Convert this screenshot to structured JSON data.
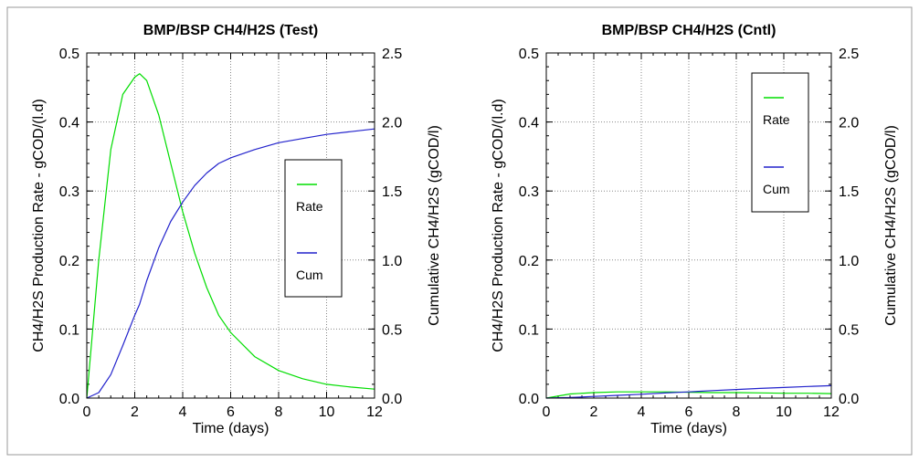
{
  "chart_data": [
    {
      "type": "line",
      "title": "BMP/BSP CH4/H2S (Test)",
      "xlabel": "Time (days)",
      "ylabel": "CH4/H2S Production Rate - gCOD/(l.d)",
      "y2label": "Cumulative CH4/H2S (gCOD/l)",
      "xlim": [
        0,
        12
      ],
      "ylim": [
        0,
        0.5
      ],
      "y2lim": [
        0,
        2.5
      ],
      "xticks": [
        "0",
        "2",
        "4",
        "6",
        "8",
        "10",
        "12"
      ],
      "yticks": [
        "0.0",
        "0.1",
        "0.2",
        "0.3",
        "0.4",
        "0.5"
      ],
      "y2ticks": [
        "0.0",
        "0.5",
        "1.0",
        "1.5",
        "2.0",
        "2.5"
      ],
      "grid": true,
      "legend_position": "center-right",
      "x": [
        0,
        0.5,
        1,
        1.5,
        2,
        2.2,
        2.5,
        3,
        3.5,
        4,
        4.5,
        5,
        5.5,
        6,
        7,
        8,
        9,
        10,
        11,
        12
      ],
      "series": [
        {
          "name": "Rate",
          "color": "#00dd00",
          "axis": "left",
          "values": [
            0,
            0.2,
            0.36,
            0.44,
            0.465,
            0.47,
            0.46,
            0.41,
            0.34,
            0.27,
            0.21,
            0.16,
            0.12,
            0.095,
            0.06,
            0.04,
            0.028,
            0.02,
            0.016,
            0.013
          ]
        },
        {
          "name": "Cum",
          "color": "#2222cc",
          "axis": "right",
          "values": [
            0,
            0.04,
            0.17,
            0.38,
            0.6,
            0.68,
            0.85,
            1.09,
            1.28,
            1.42,
            1.54,
            1.63,
            1.7,
            1.74,
            1.8,
            1.85,
            1.88,
            1.91,
            1.93,
            1.95
          ]
        }
      ]
    },
    {
      "type": "line",
      "title": "BMP/BSP CH4/H2S (Cntl)",
      "xlabel": "Time (days)",
      "ylabel": "CH4/H2S Production Rate - gCOD/(l.d)",
      "y2label": "Cumulative CH4/H2S (gCOD/l)",
      "xlim": [
        0,
        12
      ],
      "ylim": [
        0,
        0.5
      ],
      "y2lim": [
        0,
        2.5
      ],
      "xticks": [
        "0",
        "2",
        "4",
        "6",
        "8",
        "10",
        "12"
      ],
      "yticks": [
        "0.0",
        "0.1",
        "0.2",
        "0.3",
        "0.4",
        "0.5"
      ],
      "y2ticks": [
        "0.0",
        "0.5",
        "1.0",
        "1.5",
        "2.0",
        "2.5"
      ],
      "grid": true,
      "legend_position": "top-right",
      "x": [
        0,
        1,
        2,
        3,
        4,
        5,
        6,
        7,
        8,
        9,
        10,
        11,
        12
      ],
      "series": [
        {
          "name": "Rate",
          "color": "#00dd00",
          "axis": "left",
          "values": [
            0,
            0.006,
            0.008,
            0.009,
            0.009,
            0.009,
            0.0085,
            0.008,
            0.008,
            0.0075,
            0.007,
            0.007,
            0.0065
          ]
        },
        {
          "name": "Cum",
          "color": "#2222cc",
          "axis": "right",
          "values": [
            0,
            0.004,
            0.012,
            0.02,
            0.028,
            0.037,
            0.045,
            0.054,
            0.062,
            0.07,
            0.077,
            0.084,
            0.09
          ]
        }
      ]
    }
  ]
}
